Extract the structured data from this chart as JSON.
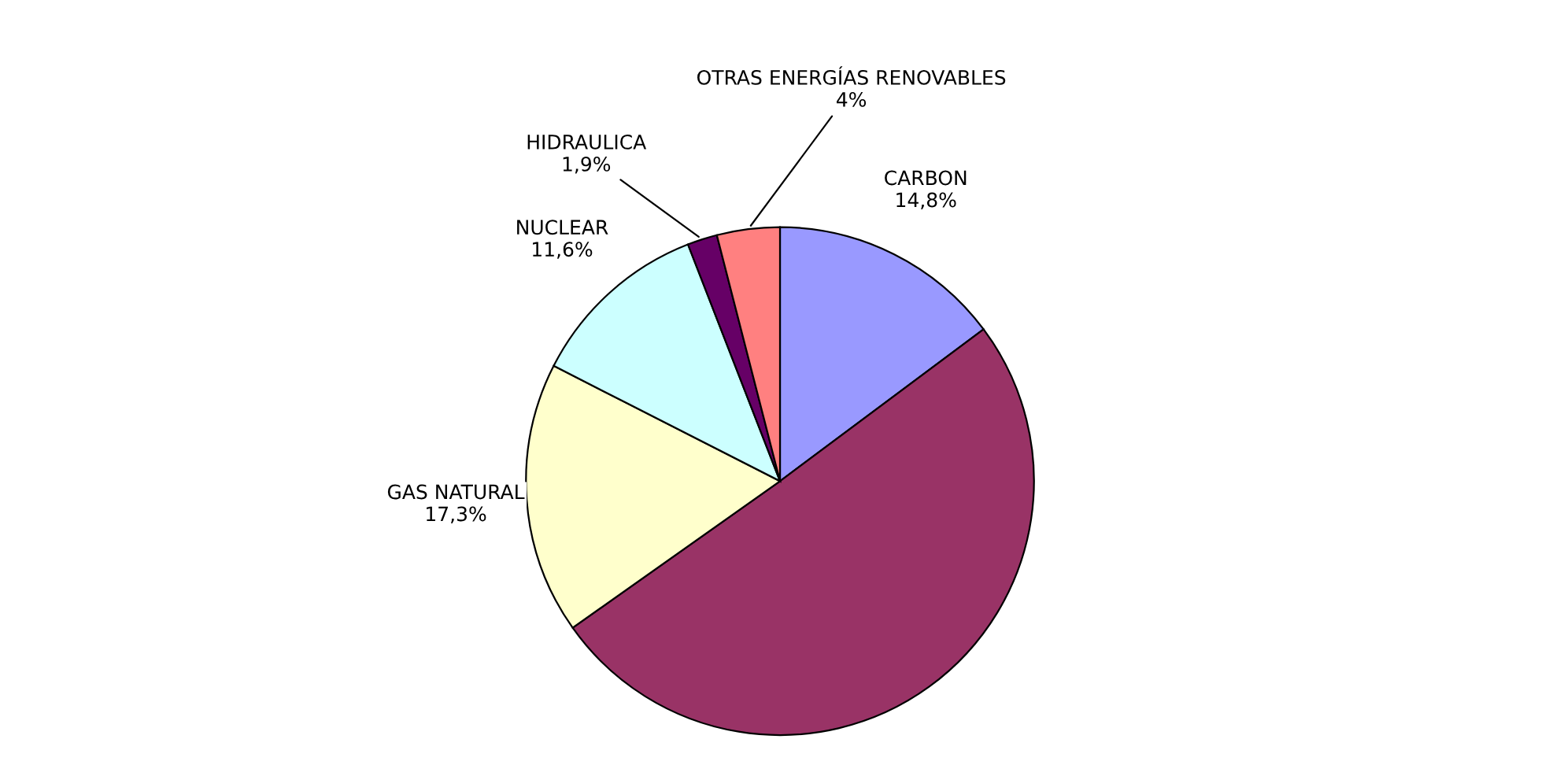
{
  "chart_data": {
    "type": "pie",
    "categories": [
      "CARBON",
      null,
      "GAS NATURAL",
      "NUCLEAR",
      "HIDRAULICA",
      "OTRAS ENERGÍAS RENOVABLES"
    ],
    "values": [
      14.8,
      50.4,
      17.3,
      11.6,
      1.9,
      4
    ],
    "value_labels": [
      "14,8%",
      null,
      "17,3%",
      "11,6%",
      "1,9%",
      "4%"
    ],
    "colors": [
      "#9999ff",
      "#993366",
      "#ffffcc",
      "#ccffff",
      "#660066",
      "#ff8080"
    ]
  }
}
